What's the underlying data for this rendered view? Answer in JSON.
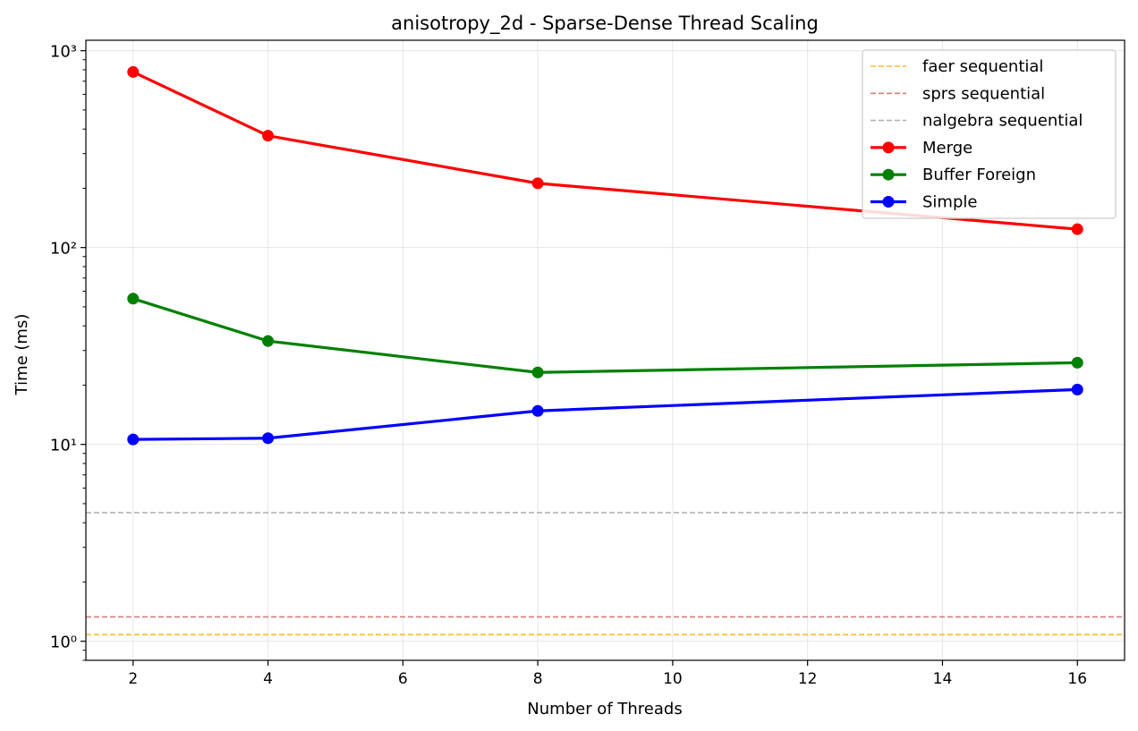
{
  "chart_data": {
    "type": "line",
    "title": "anisotropy_2d - Sparse-Dense Thread Scaling",
    "xlabel": "Number of Threads",
    "ylabel": "Time (ms)",
    "yscale": "log",
    "xlim": [
      1.3,
      16.7
    ],
    "ylim": [
      0.8,
      1130
    ],
    "x_ticks": [
      2,
      4,
      6,
      8,
      10,
      12,
      14,
      16
    ],
    "y_major_ticks": [
      1,
      10,
      100,
      1000
    ],
    "y_tick_labels": [
      "10⁰",
      "10¹",
      "10²",
      "10³"
    ],
    "grid": true,
    "legend_position": "top-right",
    "reference_lines": [
      {
        "name": "faer sequential",
        "value": 1.08,
        "color": "#ffa500"
      },
      {
        "name": "sprs sequential",
        "value": 1.33,
        "color": "#cd5c5c"
      },
      {
        "name": "nalgebra sequential",
        "value": 4.5,
        "color": "#a0a0a0"
      }
    ],
    "x": [
      2,
      4,
      8,
      16
    ],
    "series": [
      {
        "name": "Merge",
        "color": "#ff0000",
        "values": [
          780,
          370,
          212,
          124
        ]
      },
      {
        "name": "Buffer Foreign",
        "color": "#008000",
        "values": [
          55,
          33.5,
          23.2,
          26
        ]
      },
      {
        "name": "Simple",
        "color": "#0000ff",
        "values": [
          10.6,
          10.75,
          14.8,
          19
        ]
      }
    ]
  }
}
